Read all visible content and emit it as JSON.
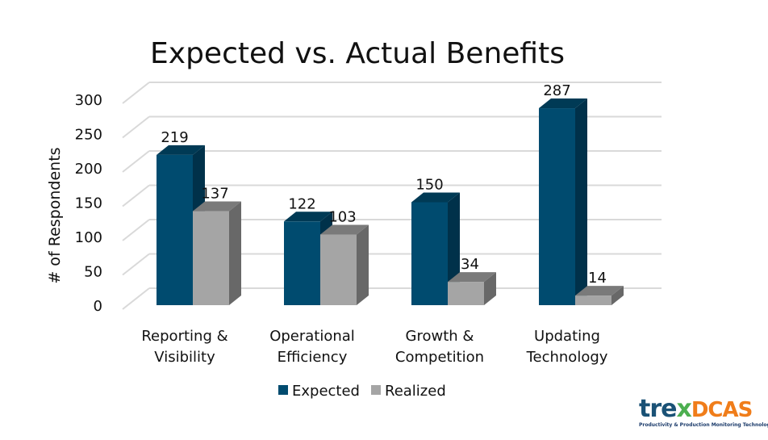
{
  "chart_data": {
    "type": "bar",
    "title": "Expected vs. Actual Benefits",
    "xlabel": "",
    "ylabel": "# of Respondents",
    "ylim": [
      0,
      300
    ],
    "yticks": [
      0,
      50,
      100,
      150,
      200,
      250,
      300
    ],
    "categories": [
      [
        "Reporting &",
        "Visibility"
      ],
      [
        "Operational",
        "Efficiency"
      ],
      [
        "Growth &",
        "Competition"
      ],
      [
        "Updating",
        "Technology"
      ]
    ],
    "series": [
      {
        "name": "Expected",
        "values": [
          219,
          122,
          150,
          287
        ],
        "color": "#004b6f"
      },
      {
        "name": "Realized",
        "values": [
          137,
          103,
          34,
          14
        ],
        "color": "#a5a5a5"
      }
    ],
    "grid": true,
    "legend": "bottom",
    "style": "3d-clustered-column"
  },
  "logo": {
    "text": "trexDCAS",
    "tagline": "Productivity & Production Monitoring Technologies"
  }
}
